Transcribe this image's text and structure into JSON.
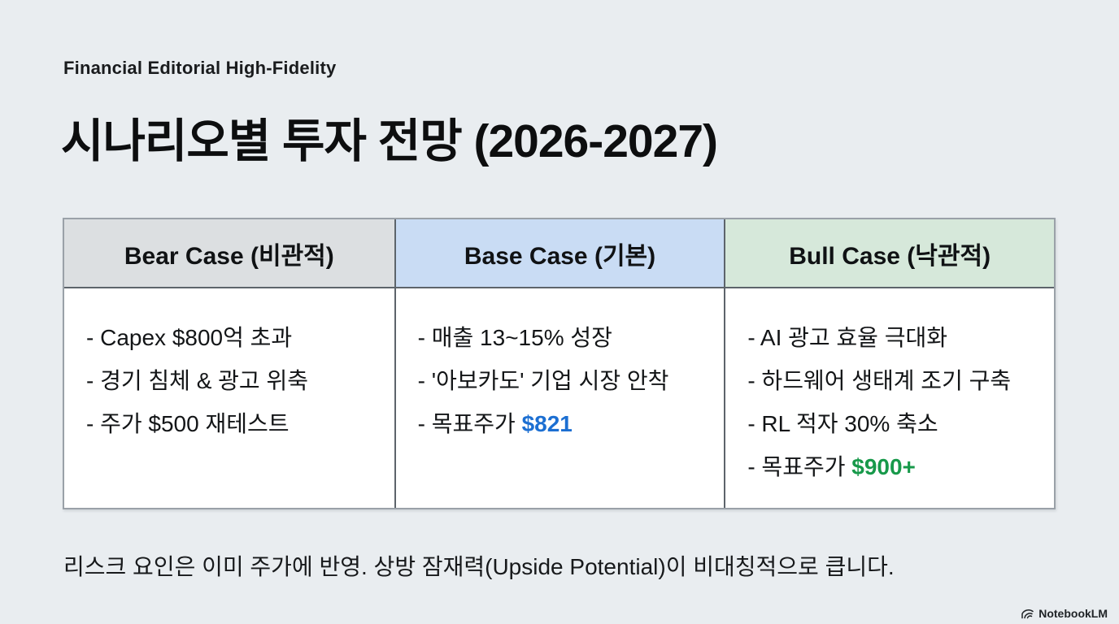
{
  "page": {
    "kicker": "Financial Editorial High-Fidelity",
    "title": "시나리오별 투자 전망 (2026-2027)",
    "footnote": "리스크 요인은 이미 주가에 반영. 상방 잠재력(Upside Potential)이 비대칭적으로 큽니다.",
    "brand": "NotebookLM"
  },
  "colors": {
    "background": "#e9edf0",
    "bear_header_bg": "#dcdfe1",
    "base_header_bg": "#c9dcf4",
    "bull_header_bg": "#d6e8da",
    "accent_blue": "#1c6fd2",
    "accent_green": "#17994a",
    "inner_border": "#5d646b",
    "outer_border": "#9aa1a8"
  },
  "table": {
    "columns": [
      {
        "key": "bear",
        "header": "Bear Case (비관적)",
        "header_bg": "#dcdfe1",
        "items": [
          {
            "text": "- Capex $800억 초과"
          },
          {
            "text": "- 경기 침체 & 광고 위축"
          },
          {
            "text": "- 주가 $500 재테스트"
          }
        ]
      },
      {
        "key": "base",
        "header": "Base Case (기본)",
        "header_bg": "#c9dcf4",
        "items": [
          {
            "text": "- 매출 13~15% 성장"
          },
          {
            "text": "- '아보카도' 기업 시장 안착"
          },
          {
            "text": "- 목표주가 ",
            "highlight": "$821",
            "highlight_color": "#1c6fd2"
          }
        ]
      },
      {
        "key": "bull",
        "header": "Bull Case (낙관적)",
        "header_bg": "#d6e8da",
        "items": [
          {
            "text": "- AI 광고 효율 극대화"
          },
          {
            "text": "- 하드웨어 생태계 조기 구축"
          },
          {
            "text": "- RL 적자 30% 축소"
          },
          {
            "text": "- 목표주가 ",
            "highlight": "$900+",
            "highlight_color": "#17994a"
          }
        ]
      }
    ]
  }
}
